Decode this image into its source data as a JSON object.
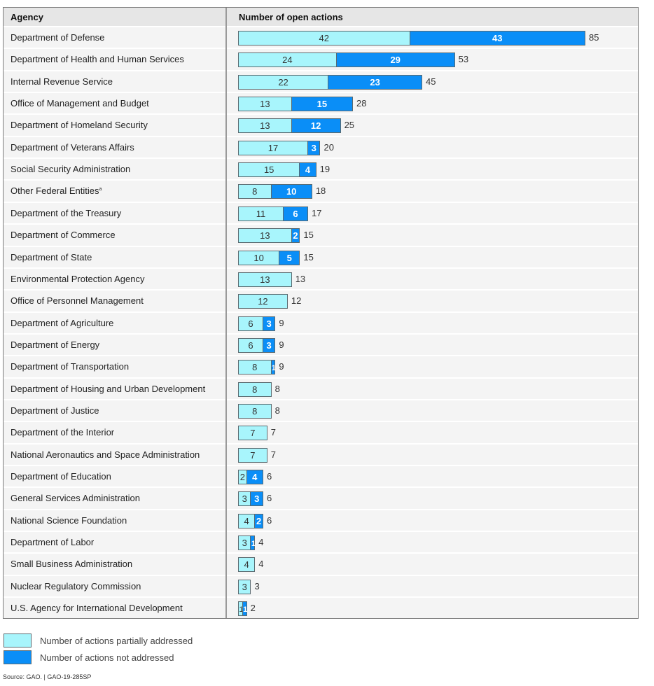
{
  "chart_data": {
    "type": "bar",
    "orientation": "horizontal",
    "stacked": true,
    "title": "",
    "xlabel": "Number of open actions",
    "ylabel": "Agency",
    "xlim": [
      0,
      85
    ],
    "grid": false,
    "legend_position": "bottom-left",
    "categories": [
      "Department of Defense",
      "Department of Health and Human Services",
      "Internal Revenue Service",
      "Office of Management and Budget",
      "Department of Homeland Security",
      "Department of Veterans Affairs",
      "Social Security Administration",
      "Other Federal Entities",
      "Department of the Treasury",
      "Department of Commerce",
      "Department of State",
      "Environmental Protection Agency",
      "Office of Personnel Management",
      "Department of Agriculture",
      "Department of Energy",
      "Department of Transportation",
      "Department of Housing and Urban Development",
      "Department of Justice",
      "Department of the Interior",
      "National Aeronautics and Space Administration",
      "Department of Education",
      "General Services Administration",
      "National Science Foundation",
      "Department of Labor",
      "Small Business Administration",
      "Nuclear Regulatory Commission",
      "U.S. Agency for International Development"
    ],
    "category_footnotes": {
      "Other Federal Entities": "a"
    },
    "series": [
      {
        "name": "Number of actions partially addressed",
        "color": "#a8f5fc",
        "values": [
          42,
          24,
          22,
          13,
          13,
          17,
          15,
          8,
          11,
          13,
          10,
          13,
          12,
          6,
          6,
          8,
          8,
          8,
          7,
          7,
          2,
          3,
          4,
          3,
          4,
          3,
          1
        ]
      },
      {
        "name": "Number of actions not addressed",
        "color": "#0a8ef7",
        "values": [
          43,
          29,
          23,
          15,
          12,
          3,
          4,
          10,
          6,
          2,
          5,
          0,
          0,
          3,
          3,
          1,
          0,
          0,
          0,
          0,
          4,
          3,
          2,
          1,
          0,
          0,
          1
        ]
      }
    ],
    "totals": [
      85,
      53,
      45,
      28,
      25,
      20,
      19,
      18,
      17,
      15,
      15,
      13,
      12,
      9,
      9,
      9,
      8,
      8,
      7,
      7,
      6,
      6,
      6,
      4,
      4,
      3,
      2
    ]
  },
  "header": {
    "agency_label": "Agency",
    "value_label": "Number of open actions"
  },
  "legend": [
    {
      "label": "Number of actions partially addressed",
      "color": "#a8f5fc"
    },
    {
      "label": "Number of actions not addressed",
      "color": "#0a8ef7"
    }
  ],
  "source": "Source: GAO.  |  GAO-19-285SP"
}
